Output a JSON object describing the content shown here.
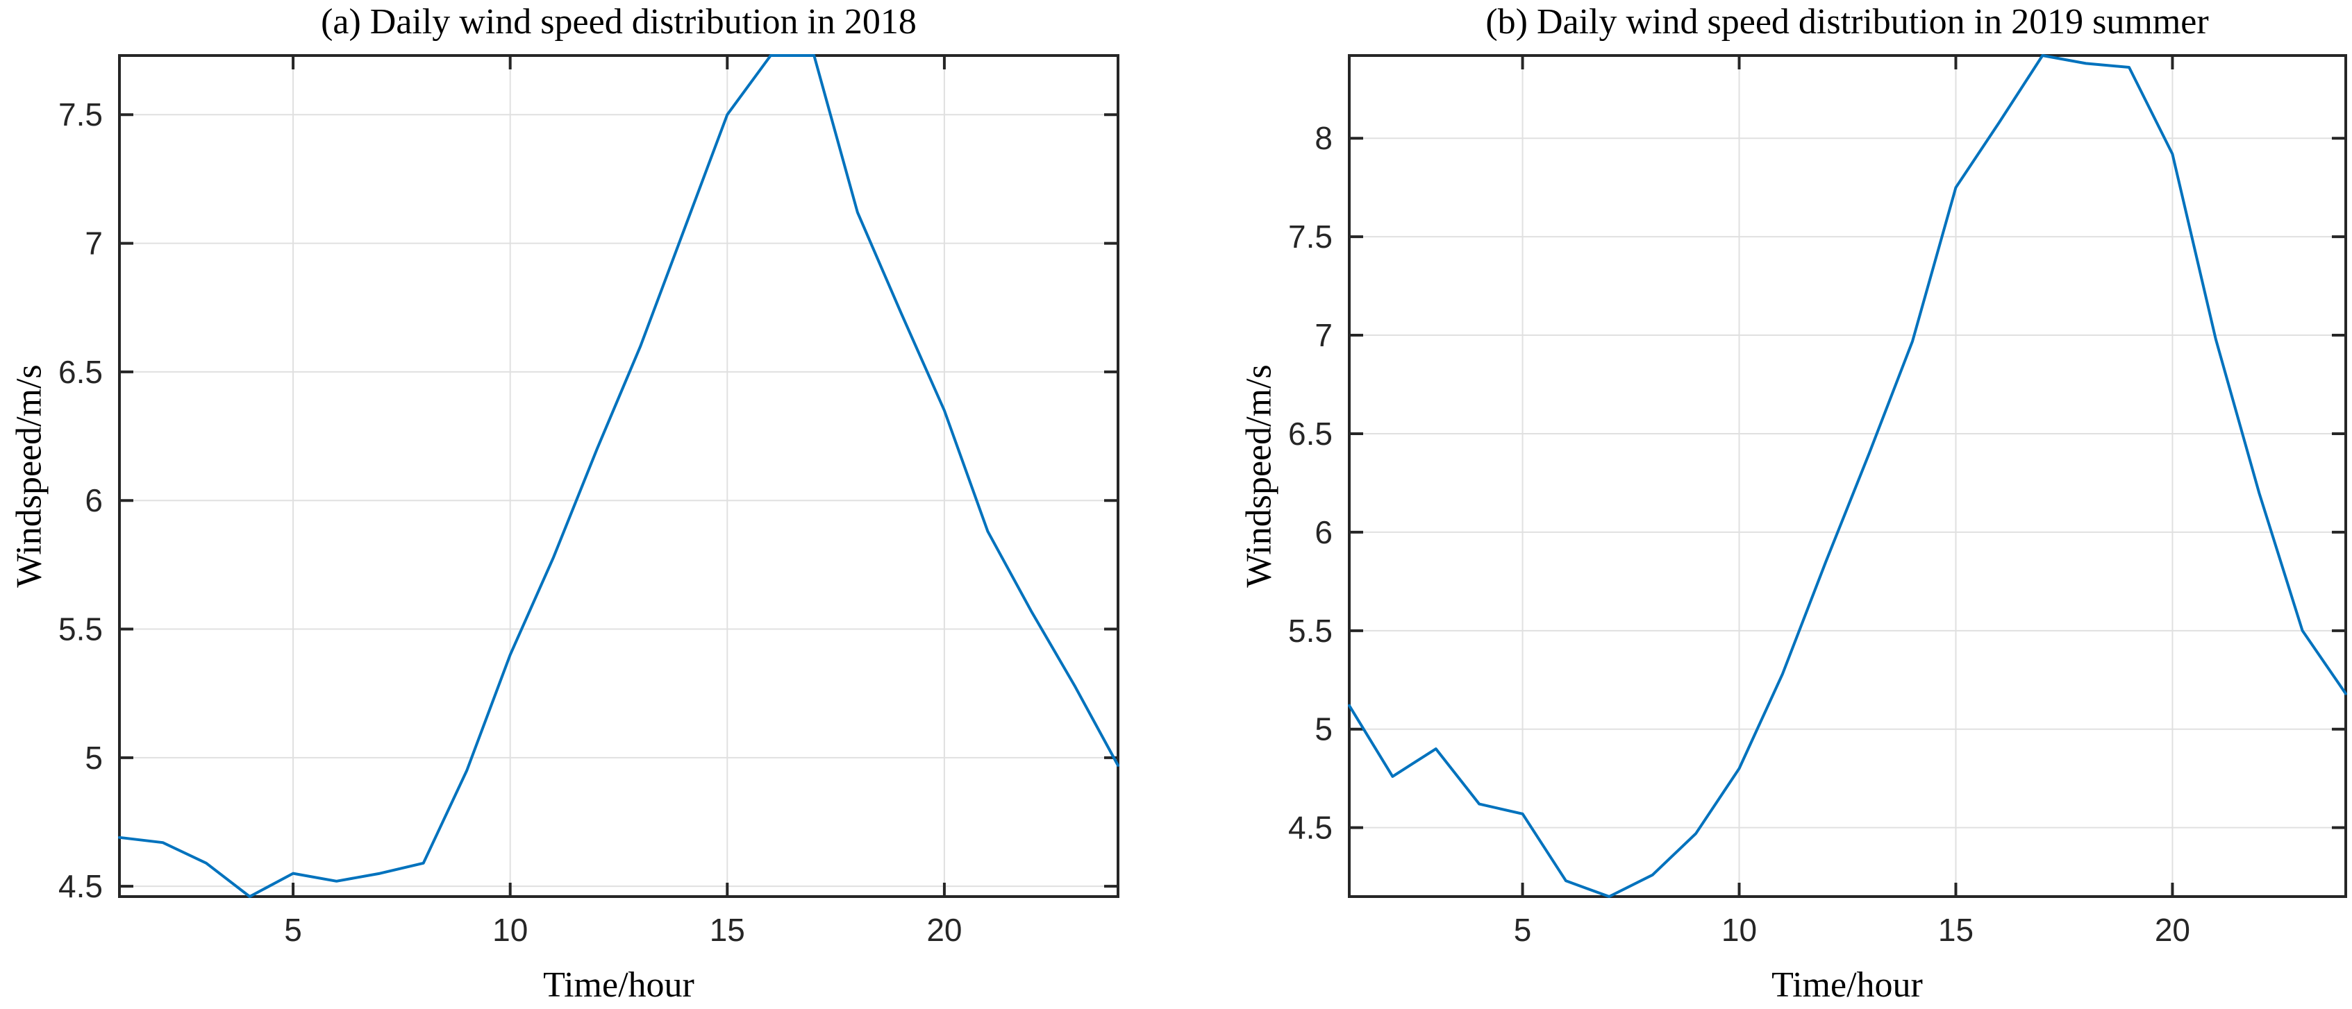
{
  "figure": {
    "background": "#ffffff",
    "line_color": "#0072bd",
    "axis_color": "#262626",
    "grid_color": "#e0e0e0",
    "tick_label_color": "#262626",
    "text_color": "#000000"
  },
  "chart_data": [
    {
      "type": "line",
      "title": "(a) Daily wind speed distribution in 2018",
      "xlabel": "Time/hour",
      "ylabel": "Windspeed/m/s",
      "x": [
        1,
        2,
        3,
        4,
        5,
        6,
        7,
        8,
        9,
        10,
        11,
        12,
        13,
        14,
        15,
        16,
        17,
        18,
        19,
        20,
        21,
        22,
        23,
        24
      ],
      "values": [
        4.69,
        4.67,
        4.59,
        4.46,
        4.55,
        4.52,
        4.55,
        4.59,
        4.95,
        5.4,
        5.78,
        6.2,
        6.6,
        7.05,
        7.5,
        7.73,
        7.73,
        7.12,
        6.73,
        6.35,
        5.88,
        5.57,
        5.28,
        4.97
      ],
      "xlim": [
        1,
        24
      ],
      "ylim": [
        4.46,
        7.73
      ],
      "xticks": [
        5,
        10,
        15,
        20
      ],
      "yticks": [
        4.5,
        5,
        5.5,
        6,
        6.5,
        7,
        7.5
      ],
      "grid": true,
      "legend": null
    },
    {
      "type": "line",
      "title": "(b) Daily wind speed distribution in 2019 summer",
      "xlabel": "Time/hour",
      "ylabel": "Windspeed/m/s",
      "x": [
        1,
        2,
        3,
        4,
        5,
        6,
        7,
        8,
        9,
        10,
        11,
        12,
        13,
        14,
        15,
        16,
        17,
        18,
        19,
        20,
        21,
        22,
        23,
        24
      ],
      "values": [
        5.12,
        4.76,
        4.9,
        4.62,
        4.57,
        4.23,
        4.15,
        4.26,
        4.47,
        4.8,
        5.28,
        5.85,
        6.4,
        6.97,
        7.75,
        8.08,
        8.42,
        8.38,
        8.36,
        7.92,
        6.98,
        6.2,
        5.5,
        5.18
      ],
      "xlim": [
        1,
        24
      ],
      "ylim": [
        4.15,
        8.42
      ],
      "xticks": [
        5,
        10,
        15,
        20
      ],
      "yticks": [
        4.5,
        5,
        5.5,
        6,
        6.5,
        7,
        7.5,
        8
      ],
      "grid": true,
      "legend": null
    }
  ]
}
